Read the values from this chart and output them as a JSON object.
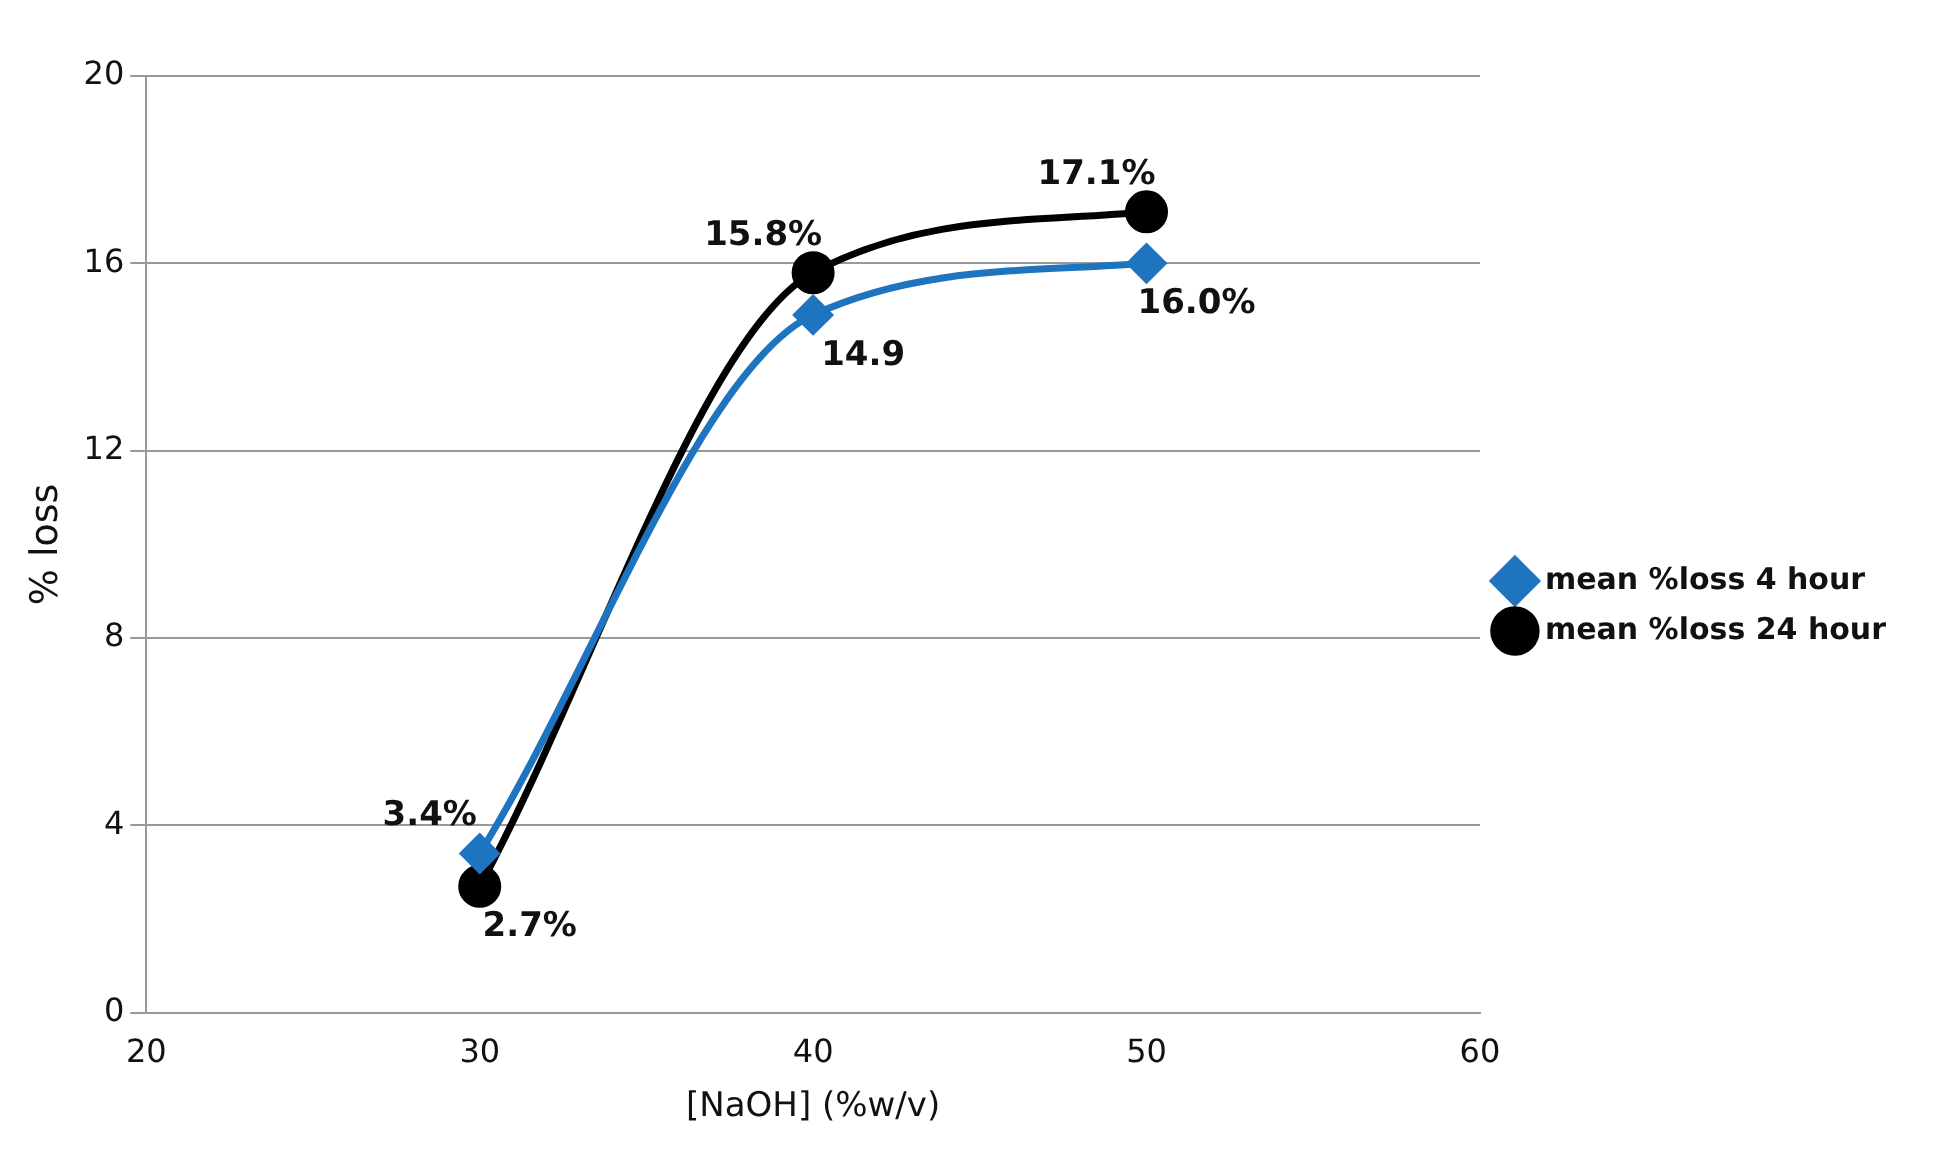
{
  "chart_data": {
    "type": "line",
    "xlabel": "[NaOH] (%w/v)",
    "ylabel": "% loss",
    "x": [
      30,
      40,
      50
    ],
    "xlim": [
      20,
      60
    ],
    "xticks": [
      20,
      30,
      40,
      50,
      60
    ],
    "ylim": [
      0,
      20
    ],
    "yticks": [
      0,
      4,
      8,
      12,
      16,
      20
    ],
    "grid": "y",
    "legend": "right",
    "series": [
      {
        "name": "mean %loss 4 hour",
        "color": "#1f74c0",
        "values": [
          3.4,
          14.9,
          16.0
        ],
        "marker": "diamond",
        "value_labels": [
          "3.4%",
          "14.9",
          "16.0%"
        ]
      },
      {
        "name": "mean %loss 24 hour",
        "color": "#000000",
        "values": [
          2.7,
          15.8,
          17.1
        ],
        "marker": "circle",
        "value_labels": [
          "2.7%",
          "15.8%",
          "17.1%"
        ]
      }
    ]
  }
}
